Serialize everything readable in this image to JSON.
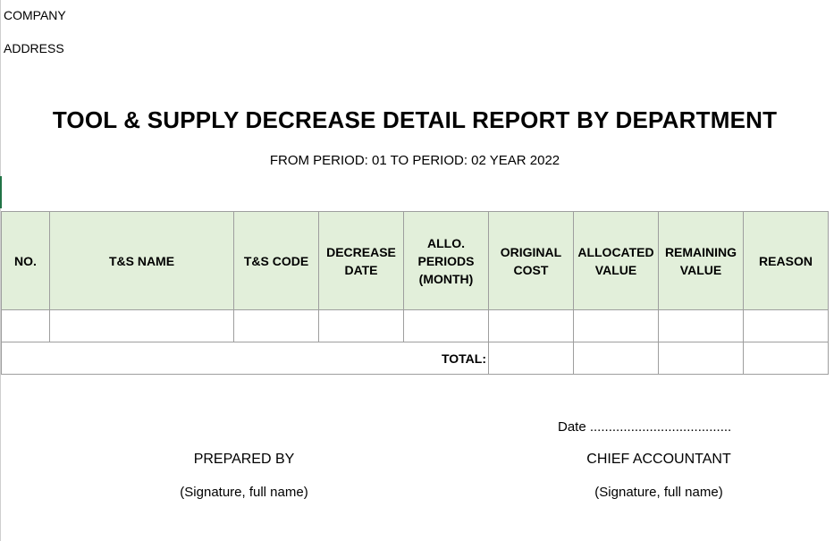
{
  "header": {
    "company": "COMPANY",
    "address": "ADDRESS"
  },
  "report": {
    "title": "TOOL & SUPPLY DECREASE DETAIL REPORT BY DEPARTMENT",
    "period": "FROM PERIOD: 01 TO PERIOD: 02 YEAR 2022"
  },
  "table": {
    "columns": [
      {
        "label": "NO."
      },
      {
        "label": "T&S NAME"
      },
      {
        "label": "T&S CODE"
      },
      {
        "label": "DECREASE\nDATE"
      },
      {
        "label": "ALLO.\nPERIODS\n(MONTH)"
      },
      {
        "label": "ORIGINAL\nCOST"
      },
      {
        "label": "ALLOCATED\nVALUE"
      },
      {
        "label": "REMAINING\nVALUE"
      },
      {
        "label": "REASON"
      }
    ],
    "rows": [
      [
        "",
        "",
        "",
        "",
        "",
        "",
        "",
        "",
        ""
      ]
    ],
    "total_label": "TOTAL:",
    "total_values": [
      "",
      "",
      "",
      ""
    ]
  },
  "footer": {
    "date_line": "Date ......................................",
    "prepared_by": "PREPARED BY",
    "prepared_sig": "(Signature, full name)",
    "chief_accountant": "CHIEF ACCOUNTANT",
    "chief_sig": "(Signature, full name)"
  }
}
